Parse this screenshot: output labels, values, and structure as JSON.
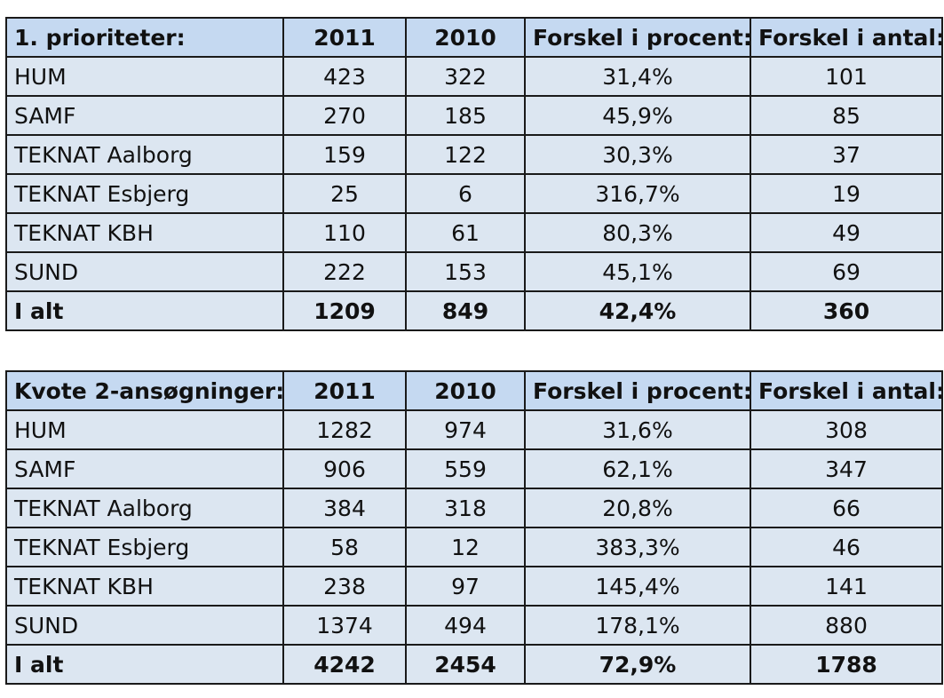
{
  "table1": {
    "headers": [
      "1. prioriteter:",
      "2011",
      "2010",
      "Forskel i procent:",
      "Forskel i antal:"
    ],
    "rows": [
      [
        "HUM",
        "423",
        "322",
        "31,4%",
        "101"
      ],
      [
        "SAMF",
        "270",
        "185",
        "45,9%",
        "85"
      ],
      [
        "TEKNAT Aalborg",
        "159",
        "122",
        "30,3%",
        "37"
      ],
      [
        "TEKNAT Esbjerg",
        "25",
        "6",
        "316,7%",
        "19"
      ],
      [
        "TEKNAT KBH",
        "110",
        "61",
        "80,3%",
        "49"
      ],
      [
        "SUND",
        "222",
        "153",
        "45,1%",
        "69"
      ]
    ],
    "total": [
      "I alt",
      "1209",
      "849",
      "42,4%",
      "360"
    ]
  },
  "table2": {
    "headers": [
      "Kvote 2-ansøgninger:",
      "2011",
      "2010",
      "Forskel i procent:",
      "Forskel i antal:"
    ],
    "rows": [
      [
        "HUM",
        "1282",
        "974",
        "31,6%",
        "308"
      ],
      [
        "SAMF",
        "906",
        "559",
        "62,1%",
        "347"
      ],
      [
        "TEKNAT Aalborg",
        "384",
        "318",
        "20,8%",
        "66"
      ],
      [
        "TEKNAT Esbjerg",
        "58",
        "12",
        "383,3%",
        "46"
      ],
      [
        "TEKNAT KBH",
        "238",
        "97",
        "145,4%",
        "141"
      ],
      [
        "SUND",
        "1374",
        "494",
        "178,1%",
        "880"
      ]
    ],
    "total": [
      "I alt",
      "4242",
      "2454",
      "72,9%",
      "1788"
    ]
  }
}
